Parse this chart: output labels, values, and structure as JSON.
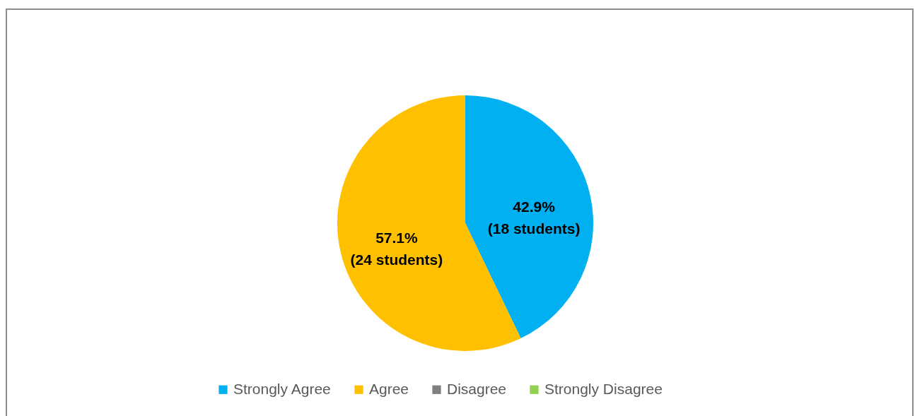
{
  "chart_data": {
    "type": "pie",
    "categories": [
      "Strongly Agree",
      "Agree",
      "Disagree",
      "Strongly Disagree"
    ],
    "values": [
      18,
      24,
      0,
      0
    ],
    "colors": [
      "#00b0f0",
      "#ffc000",
      "#7f7f7f",
      "#92d050"
    ],
    "value_labels": [
      "42.9%\n(18 students)",
      "57.1%\n(24 students)",
      null,
      null
    ],
    "legend": "bottom"
  }
}
